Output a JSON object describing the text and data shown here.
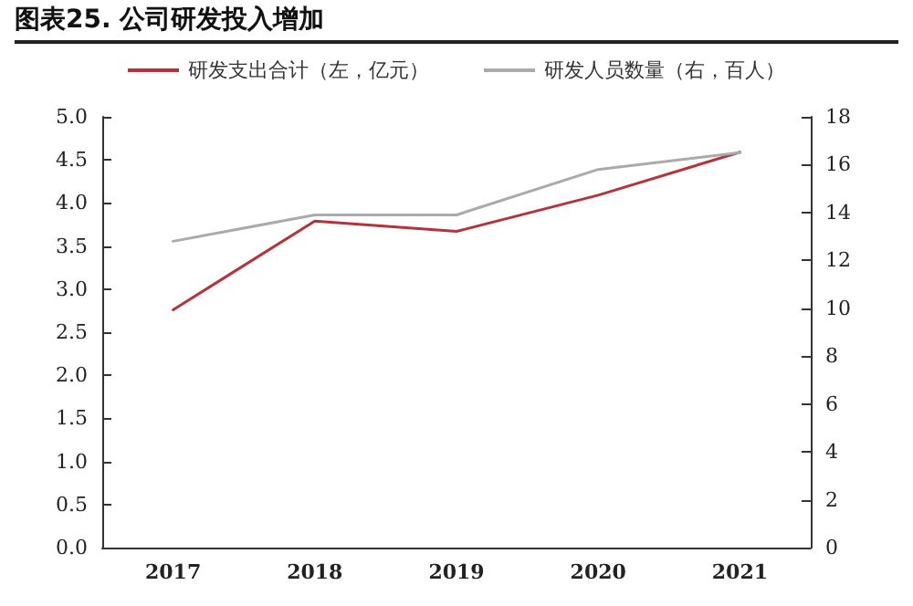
{
  "chart_data": {
    "type": "line",
    "title": "图表25. 公司研发投入增加",
    "categories": [
      "2017",
      "2018",
      "2019",
      "2020",
      "2021"
    ],
    "series": [
      {
        "name": "研发支出合计（左，亿元）",
        "color": "#b5343c",
        "values": [
          2.76,
          3.79,
          3.67,
          4.09,
          4.59
        ]
      },
      {
        "name": "研发人员数量（右，百人）",
        "color": "#aaaaaa",
        "axis": "y2",
        "values": [
          12.8,
          13.9,
          13.9,
          15.8,
          16.5
        ]
      }
    ],
    "ylim": [
      0,
      5
    ],
    "yticks": [
      {
        "value": 0,
        "label": "0.0"
      },
      0.5,
      {
        "value": 1,
        "label": "1.0"
      },
      1.5,
      {
        "value": 2,
        "label": "2.0"
      },
      2.5,
      {
        "value": 3,
        "label": "3.0"
      },
      3.5,
      {
        "value": 4,
        "label": "4.0"
      },
      4.5,
      {
        "value": 5,
        "label": "5.0"
      }
    ],
    "y2lim": [
      0,
      18
    ],
    "y2ticks": [
      0,
      2,
      4,
      6,
      8,
      10,
      12,
      14,
      16,
      18
    ],
    "grid": false,
    "legend": "top",
    "marker": "none",
    "line_style": "solid"
  }
}
